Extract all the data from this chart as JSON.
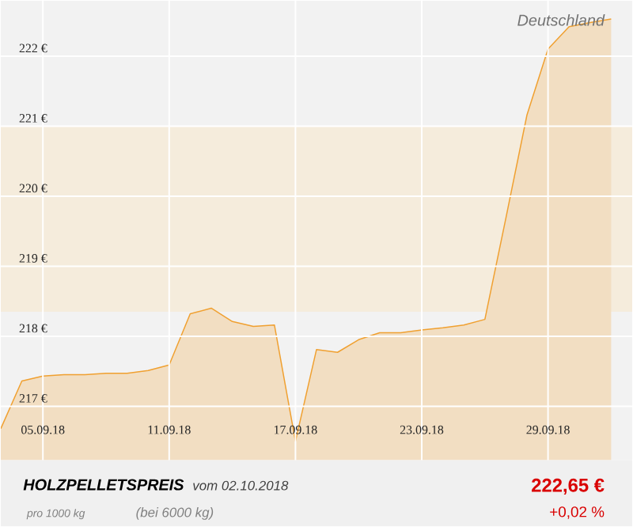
{
  "chart_data": {
    "type": "area",
    "title": "HOLZPELLETSPREIS",
    "subtitle": "vom 02.10.2018",
    "annotations": [
      "Deutschland",
      "pro 1000 kg",
      "(bei 6000 kg)",
      "222,65 €",
      "+0,02 %"
    ],
    "x": [
      "2018-09-03",
      "2018-09-04",
      "2018-09-05",
      "2018-09-06",
      "2018-09-07",
      "2018-09-08",
      "2018-09-09",
      "2018-09-10",
      "2018-09-11",
      "2018-09-12",
      "2018-09-13",
      "2018-09-14",
      "2018-09-15",
      "2018-09-16",
      "2018-09-17",
      "2018-09-18",
      "2018-09-19",
      "2018-09-20",
      "2018-09-21",
      "2018-09-22",
      "2018-09-23",
      "2018-09-24",
      "2018-09-25",
      "2018-09-26",
      "2018-09-27",
      "2018-09-28",
      "2018-09-29",
      "2018-09-30",
      "2018-10-01",
      "2018-10-02"
    ],
    "series": [
      {
        "color": "#f0a030",
        "values": [
          216.68,
          217.36,
          217.43,
          217.45,
          217.45,
          217.47,
          217.47,
          217.51,
          217.59,
          218.32,
          218.4,
          218.21,
          218.14,
          218.16,
          216.5,
          217.81,
          217.77,
          217.95,
          218.05,
          218.05,
          218.09,
          218.12,
          218.16,
          218.24,
          219.69,
          221.16,
          222.1,
          222.42,
          222.48,
          222.53
        ]
      }
    ],
    "xlim": [
      "2018-09-03",
      "2018-10-03"
    ],
    "xticks": [
      {
        "value": "2018-09-05",
        "label": "05.09.18"
      },
      {
        "value": "2018-09-11",
        "label": "11.09.18"
      },
      {
        "value": "2018-09-17",
        "label": "17.09.18"
      },
      {
        "value": "2018-09-23",
        "label": "23.09.18"
      },
      {
        "value": "2018-09-29",
        "label": "29.09.18"
      }
    ],
    "ylim": [
      216.23,
      222.79
    ],
    "yticks": [
      {
        "value": 217,
        "label": "217 €"
      },
      {
        "value": 218,
        "label": "218 €"
      },
      {
        "value": 219,
        "label": "219 €"
      },
      {
        "value": 220,
        "label": "220 €"
      },
      {
        "value": 221,
        "label": "221 €"
      },
      {
        "value": 222,
        "label": "222 €"
      }
    ],
    "bands": [
      {
        "axis": "y",
        "from": 218.35,
        "to": 221,
        "color": "#f5ecdc"
      }
    ],
    "grid": true,
    "marker": "none",
    "line_style": "solid"
  }
}
